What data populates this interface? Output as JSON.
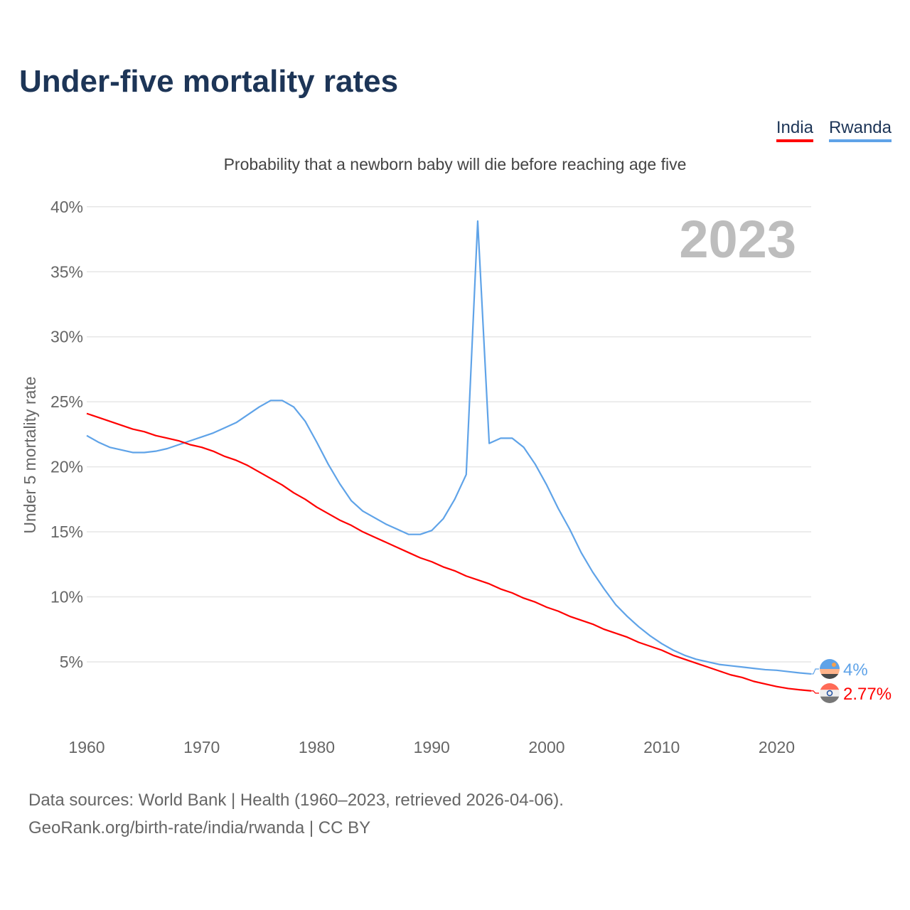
{
  "chart_data": {
    "type": "line",
    "title": "Under-five mortality rates",
    "subtitle": "Probability that a newborn baby will die before reaching age five",
    "ylabel": "Under 5 mortality rate",
    "xlabel": "",
    "year_label": "2023",
    "ylim": [
      0,
      40
    ],
    "xlim": [
      1960,
      2023
    ],
    "yticks": [
      "5%",
      "10%",
      "15%",
      "20%",
      "25%",
      "30%",
      "35%",
      "40%"
    ],
    "ytick_values": [
      5,
      10,
      15,
      20,
      25,
      30,
      35,
      40
    ],
    "xticks": [
      "1960",
      "1970",
      "1980",
      "1990",
      "2000",
      "2010",
      "2020"
    ],
    "xtick_values": [
      1960,
      1970,
      1980,
      1990,
      2000,
      2010,
      2020
    ],
    "grid": true,
    "legend_position": "top-right",
    "x": [
      1960,
      1961,
      1962,
      1963,
      1964,
      1965,
      1966,
      1967,
      1968,
      1969,
      1970,
      1971,
      1972,
      1973,
      1974,
      1975,
      1976,
      1977,
      1978,
      1979,
      1980,
      1981,
      1982,
      1983,
      1984,
      1985,
      1986,
      1987,
      1988,
      1989,
      1990,
      1991,
      1992,
      1993,
      1994,
      1995,
      1996,
      1997,
      1998,
      1999,
      2000,
      2001,
      2002,
      2003,
      2004,
      2005,
      2006,
      2007,
      2008,
      2009,
      2010,
      2011,
      2012,
      2013,
      2014,
      2015,
      2016,
      2017,
      2018,
      2019,
      2020,
      2021,
      2022,
      2023
    ],
    "series": [
      {
        "name": "India",
        "color": "#ff0000",
        "end_label": "2.77%",
        "values": [
          24.1,
          23.8,
          23.5,
          23.2,
          22.9,
          22.7,
          22.4,
          22.2,
          22.0,
          21.7,
          21.5,
          21.2,
          20.8,
          20.5,
          20.1,
          19.6,
          19.1,
          18.6,
          18.0,
          17.5,
          16.9,
          16.4,
          15.9,
          15.5,
          15.0,
          14.6,
          14.2,
          13.8,
          13.4,
          13.0,
          12.7,
          12.3,
          12.0,
          11.6,
          11.3,
          11.0,
          10.6,
          10.3,
          9.9,
          9.6,
          9.2,
          8.9,
          8.5,
          8.2,
          7.9,
          7.5,
          7.2,
          6.9,
          6.5,
          6.2,
          5.9,
          5.5,
          5.2,
          4.9,
          4.6,
          4.3,
          4.0,
          3.8,
          3.5,
          3.3,
          3.1,
          2.95,
          2.85,
          2.77
        ]
      },
      {
        "name": "Rwanda",
        "color": "#5fa3e8",
        "end_label": "4%",
        "values": [
          22.4,
          21.9,
          21.5,
          21.3,
          21.1,
          21.1,
          21.2,
          21.4,
          21.7,
          22.0,
          22.3,
          22.6,
          23.0,
          23.4,
          24.0,
          24.6,
          25.1,
          25.1,
          24.6,
          23.5,
          21.9,
          20.2,
          18.7,
          17.4,
          16.6,
          16.1,
          15.6,
          15.2,
          14.8,
          14.8,
          15.1,
          16.0,
          17.5,
          19.4,
          38.9,
          21.8,
          22.2,
          22.2,
          21.5,
          20.2,
          18.6,
          16.8,
          15.2,
          13.4,
          11.9,
          10.6,
          9.4,
          8.5,
          7.7,
          7.0,
          6.4,
          5.9,
          5.5,
          5.2,
          5.0,
          4.8,
          4.7,
          4.6,
          4.5,
          4.4,
          4.35,
          4.25,
          4.15,
          4.07
        ]
      }
    ]
  },
  "footer": {
    "line1": "Data sources: World Bank | Health (1960–2023, retrieved 2026-04-06).",
    "line2": "GeoRank.org/birth-rate/india/rwanda | CC BY"
  }
}
